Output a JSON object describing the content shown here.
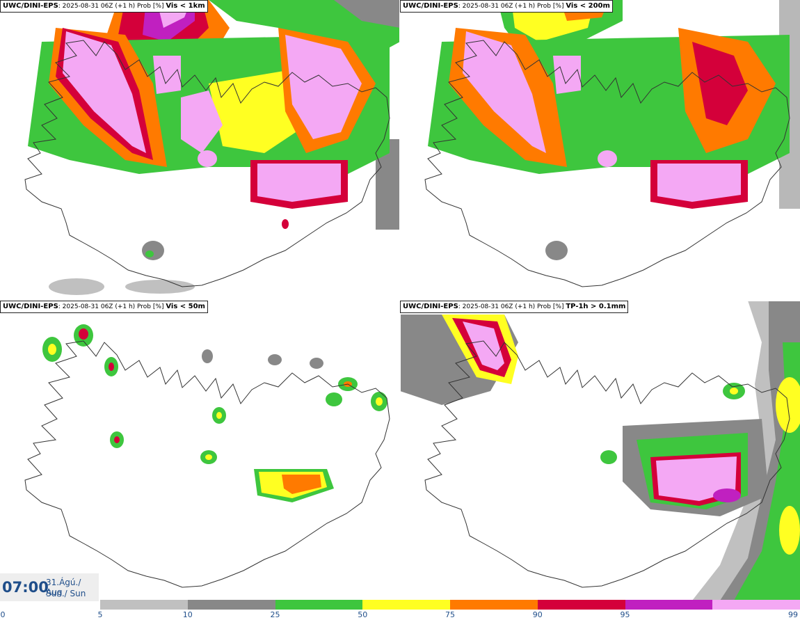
{
  "panels": [
    {
      "source": "UWC/DINI-EPS",
      "run": "2025-08-31 06Z (+1 h) Prob [%]",
      "parameter": "Vis < 1km"
    },
    {
      "source": "UWC/DINI-EPS",
      "run": "2025-08-31 06Z (+1 h) Prob [%]",
      "parameter": "Vis < 200m"
    },
    {
      "source": "UWC/DINI-EPS",
      "run": "2025-08-31 06Z (+1 h) Prob [%]",
      "parameter": "Vis < 50m"
    },
    {
      "source": "UWC/DINI-EPS",
      "run": "2025-08-31 06Z (+1 h) Prob [%]",
      "parameter": "TP-1h > 0.1mm"
    }
  ],
  "timestamp": {
    "time": "07:00",
    "date_line1": "31.Ágú./ Aug",
    "date_line2": "Sun./ Sun"
  },
  "legend": {
    "ticks": [
      "0",
      "5",
      "10",
      "25",
      "50",
      "75",
      "90",
      "95",
      "99"
    ],
    "colors": [
      "#c0c0c0",
      "#888888",
      "#3ec63e",
      "#ffff22",
      "#ff7a00",
      "#d4003a",
      "#c020c0",
      "#f4a8f4"
    ]
  },
  "colors": {
    "light_gray": "#c0c0c0",
    "dark_gray": "#888888",
    "green": "#3ec63e",
    "yellow": "#ffff22",
    "orange": "#ff7a00",
    "red": "#d4003a",
    "magenta": "#c020c0",
    "pink": "#f4a8f4",
    "coast": "#333333"
  }
}
